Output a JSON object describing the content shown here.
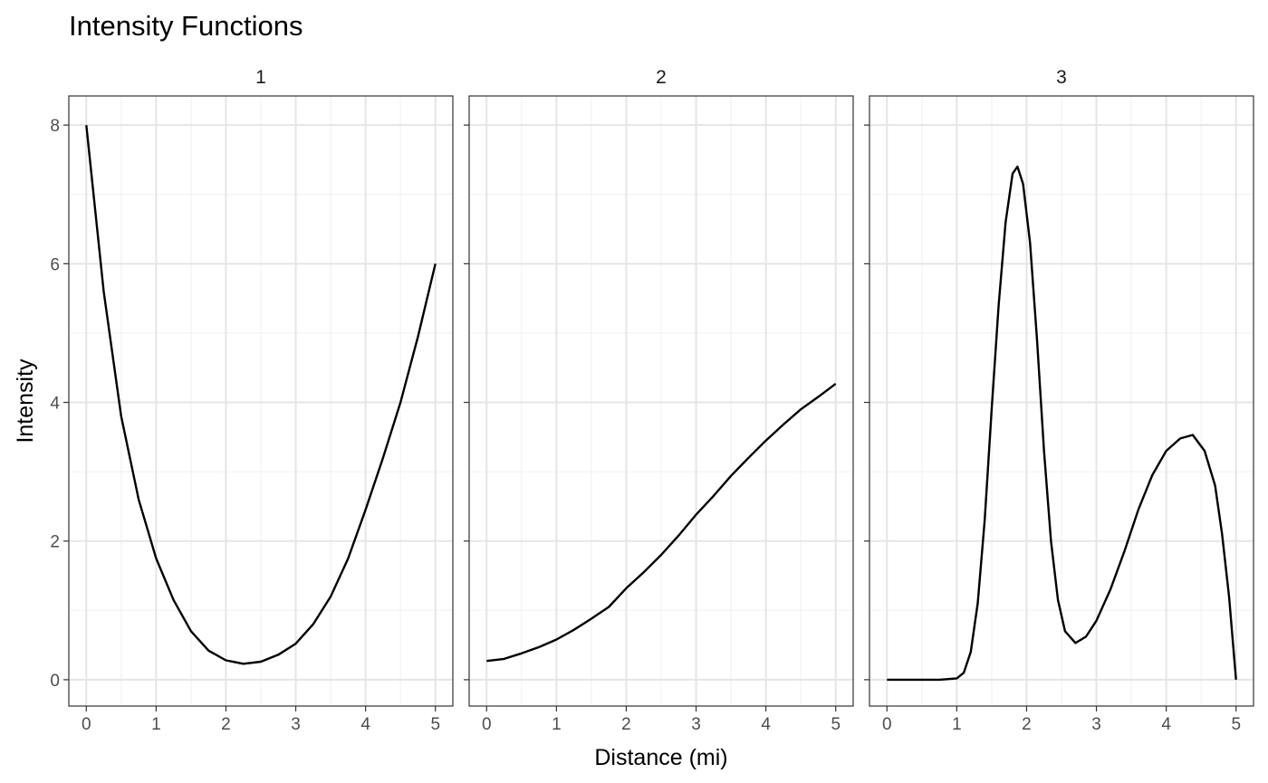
{
  "chart_data": {
    "type": "line",
    "title": "Intensity Functions",
    "xlabel": "Distance (mi)",
    "ylabel": "Intensity",
    "xlim": [
      -0.25,
      5.25
    ],
    "ylim": [
      -0.38,
      8.42
    ],
    "x_ticks": [
      0,
      1,
      2,
      3,
      4,
      5
    ],
    "y_ticks": [
      0,
      2,
      4,
      6,
      8
    ],
    "grid": true,
    "legend": "none",
    "panels": [
      {
        "strip": "1",
        "x": [
          0,
          0.25,
          0.5,
          0.75,
          1,
          1.25,
          1.5,
          1.75,
          2,
          2.25,
          2.5,
          2.75,
          3,
          3.25,
          3.5,
          3.75,
          4,
          4.25,
          4.5,
          4.75,
          5
        ],
        "y": [
          8,
          5.6,
          3.8,
          2.6,
          1.75,
          1.15,
          0.7,
          0.42,
          0.28,
          0.23,
          0.26,
          0.36,
          0.52,
          0.8,
          1.2,
          1.75,
          2.45,
          3.2,
          4.0,
          4.95,
          6.0
        ]
      },
      {
        "strip": "2",
        "x": [
          0,
          0.25,
          0.5,
          0.75,
          1,
          1.25,
          1.5,
          1.75,
          2,
          2.25,
          2.5,
          2.75,
          3,
          3.25,
          3.5,
          3.75,
          4,
          4.25,
          4.5,
          4.75,
          5
        ],
        "y": [
          0.27,
          0.3,
          0.38,
          0.47,
          0.58,
          0.72,
          0.88,
          1.05,
          1.32,
          1.55,
          1.8,
          2.08,
          2.38,
          2.65,
          2.94,
          3.2,
          3.45,
          3.68,
          3.9,
          4.08,
          4.27
        ]
      },
      {
        "strip": "3",
        "x": [
          0,
          0.25,
          0.5,
          0.75,
          1,
          1.1,
          1.2,
          1.3,
          1.4,
          1.5,
          1.6,
          1.7,
          1.8,
          1.87,
          1.95,
          2.05,
          2.15,
          2.25,
          2.35,
          2.45,
          2.55,
          2.7,
          2.85,
          3,
          3.2,
          3.4,
          3.6,
          3.8,
          4,
          4.2,
          4.38,
          4.55,
          4.7,
          4.8,
          4.9,
          5
        ],
        "y": [
          0,
          0,
          0,
          0,
          0.02,
          0.1,
          0.4,
          1.1,
          2.3,
          3.9,
          5.4,
          6.6,
          7.3,
          7.4,
          7.15,
          6.3,
          4.9,
          3.3,
          2.0,
          1.15,
          0.7,
          0.53,
          0.62,
          0.85,
          1.3,
          1.85,
          2.45,
          2.95,
          3.3,
          3.48,
          3.53,
          3.3,
          2.8,
          2.1,
          1.2,
          0
        ]
      }
    ]
  }
}
